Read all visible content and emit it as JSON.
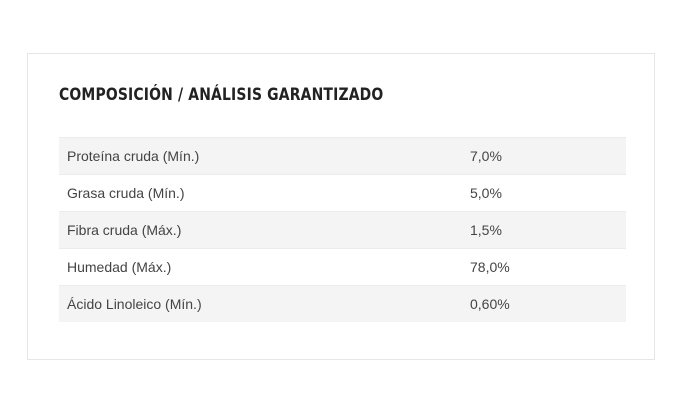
{
  "section": {
    "title": "COMPOSICIÓN / ANÁLISIS GARANTIZADO"
  },
  "table": {
    "rows": [
      {
        "label": "Proteína cruda (Mín.)",
        "value": "7,0%"
      },
      {
        "label": "Grasa cruda (Mín.)",
        "value": "5,0%"
      },
      {
        "label": "Fibra cruda (Máx.)",
        "value": "1,5%"
      },
      {
        "label": "Humedad (Máx.)",
        "value": "78,0%"
      },
      {
        "label": "Ácido Linoleico (Mín.)",
        "value": "0,60%"
      }
    ]
  }
}
